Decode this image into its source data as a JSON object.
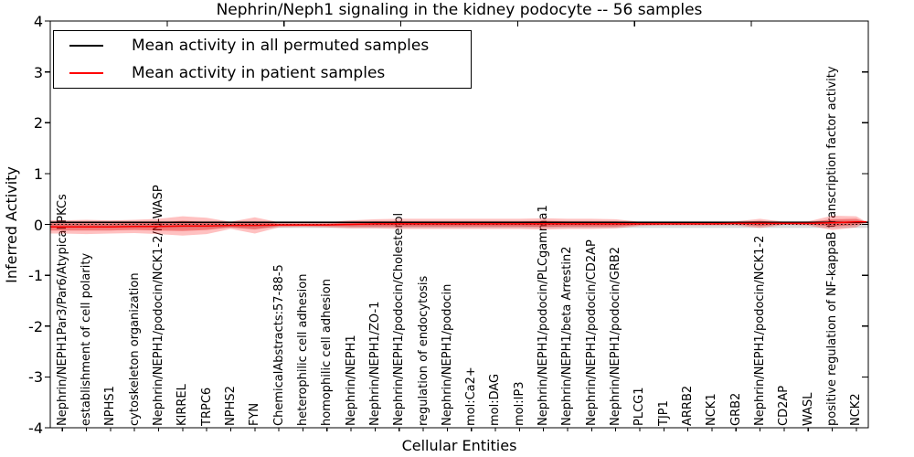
{
  "figure": {
    "background": "#ffffff",
    "title": "Nephrin/Neph1 signaling in the kidney podocyte -- 56 samples",
    "xlabel": "Cellular Entities",
    "ylabel": "Inferred Activity"
  },
  "legend": {
    "items": [
      {
        "label": "Mean activity in all permuted samples",
        "color": "#000000"
      },
      {
        "label": "Mean activity in patient samples",
        "color": "#ff0000"
      }
    ]
  },
  "chart_data": {
    "type": "line",
    "title": "Nephrin/Neph1 signaling in the kidney podocyte -- 56 samples",
    "xlabel": "Cellular Entities",
    "ylabel": "Inferred Activity",
    "ylim": [
      -4,
      4
    ],
    "yticks": [
      4,
      3,
      2,
      1,
      0,
      -1,
      -2,
      -3,
      -4
    ],
    "grid": false,
    "legend_position": "upper left",
    "zero_line": 0,
    "categories": [
      "Nephrin/NEPH1Par3/Par6/Atypical PKCs",
      "establishment of cell polarity",
      "NPHS1",
      "cytoskeleton organization",
      "Nephrin/NEPH1/podocin/NCK1-2/N-WASP",
      "KIRREL",
      "TRPC6",
      "NPHS2",
      "FYN",
      "ChemicalAbstracts:57-88-5",
      "heterophilic cell adhesion",
      "homophilic cell adhesion",
      "Nephrin/NEPH1",
      "Nephrin/NEPH1/ZO-1",
      "Nephrin/NEPH1/podocin/Cholesterol",
      "regulation of endocytosis",
      "Nephrin/NEPH1/podocin",
      "mol:Ca2+",
      "mol:DAG",
      "mol:IP3",
      "Nephrin/NEPH1/podocin/PLCgamma1",
      "Nephrin/NEPH1/beta Arrestin2",
      "Nephrin/NEPH1/podocin/CD2AP",
      "Nephrin/NEPH1/podocin/GRB2",
      "PLCG1",
      "TJP1",
      "ARRB2",
      "NCK1",
      "GRB2",
      "Nephrin/NEPH1/podocin/NCK1-2",
      "CD2AP",
      "WASL",
      "positive regulation of NF-kappaB transcription factor activity",
      "NCK2"
    ],
    "series": [
      {
        "name": "Mean activity in all permuted samples",
        "color": "#000000",
        "values": [
          0.04,
          0.04,
          0.04,
          0.04,
          0.04,
          0.04,
          0.04,
          0.04,
          0.04,
          0.04,
          0.04,
          0.04,
          0.04,
          0.04,
          0.04,
          0.04,
          0.04,
          0.04,
          0.04,
          0.04,
          0.04,
          0.04,
          0.04,
          0.04,
          0.04,
          0.04,
          0.04,
          0.04,
          0.04,
          0.04,
          0.04,
          0.04,
          0.04,
          0.04
        ]
      },
      {
        "name": "Mean activity in patient samples",
        "color": "#ff0000",
        "values": [
          -0.05,
          -0.05,
          -0.05,
          -0.04,
          -0.04,
          -0.03,
          -0.03,
          -0.02,
          -0.02,
          -0.01,
          -0.01,
          -0.01,
          0.0,
          0.01,
          0.01,
          0.01,
          0.01,
          0.01,
          0.01,
          0.01,
          0.01,
          0.01,
          0.01,
          0.01,
          0.01,
          0.01,
          0.01,
          0.01,
          0.02,
          0.02,
          0.02,
          0.02,
          0.03,
          0.05
        ]
      }
    ],
    "bands": [
      {
        "name": "permuted-samples-std-band",
        "color": "#808080",
        "opacity": 0.3,
        "center": 0,
        "halfwidths": [
          0.07,
          0.07,
          0.07,
          0.07,
          0.07,
          0.07,
          0.07,
          0.07,
          0.07,
          0.07,
          0.07,
          0.07,
          0.07,
          0.07,
          0.07,
          0.07,
          0.07,
          0.07,
          0.07,
          0.07,
          0.07,
          0.07,
          0.07,
          0.07,
          0.07,
          0.07,
          0.07,
          0.07,
          0.07,
          0.07,
          0.07,
          0.07,
          0.07,
          0.07
        ]
      },
      {
        "name": "patient-samples-outer-band",
        "color": "#ff2020",
        "opacity": 0.28,
        "halfwidths": [
          0.13,
          0.14,
          0.13,
          0.13,
          0.15,
          0.19,
          0.16,
          0.07,
          0.16,
          0.05,
          0.04,
          0.05,
          0.08,
          0.09,
          0.1,
          0.1,
          0.1,
          0.1,
          0.1,
          0.1,
          0.11,
          0.1,
          0.1,
          0.09,
          0.04,
          0.03,
          0.03,
          0.03,
          0.04,
          0.09,
          0.03,
          0.04,
          0.14,
          0.11
        ]
      },
      {
        "name": "patient-samples-inner-band",
        "color": "#e01515",
        "opacity": 0.4,
        "halfwidths": [
          0.07,
          0.07,
          0.07,
          0.07,
          0.08,
          0.1,
          0.08,
          0.04,
          0.08,
          0.025,
          0.02,
          0.025,
          0.04,
          0.05,
          0.05,
          0.05,
          0.05,
          0.05,
          0.05,
          0.05,
          0.06,
          0.05,
          0.05,
          0.05,
          0.02,
          0.015,
          0.015,
          0.015,
          0.02,
          0.05,
          0.015,
          0.02,
          0.07,
          0.06
        ]
      }
    ]
  }
}
